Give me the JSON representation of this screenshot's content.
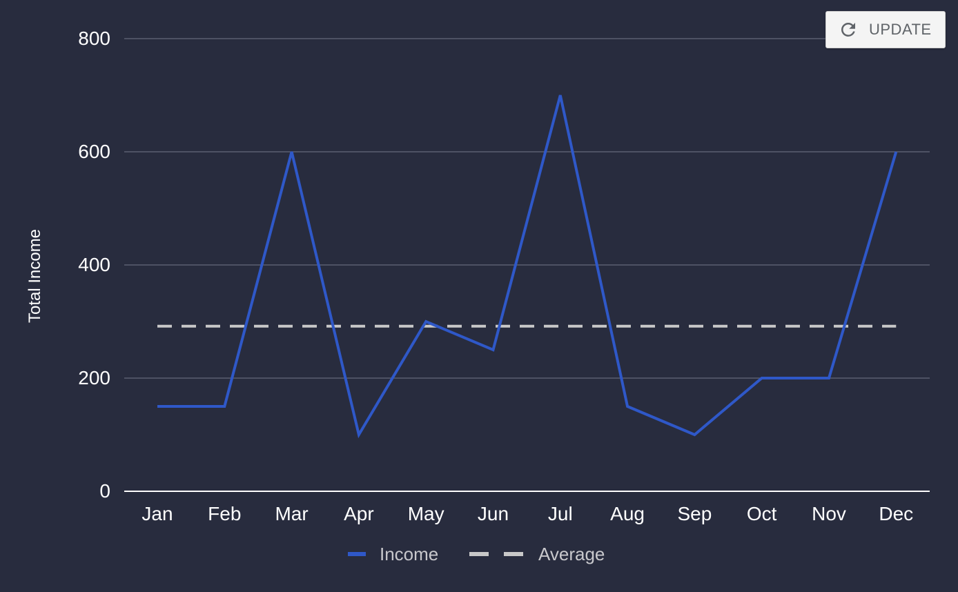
{
  "toolbar": {
    "update_label": "UPDATE"
  },
  "colors": {
    "background": "#282c3e",
    "income": "#2f58c8",
    "average": "#c8c8c8",
    "grid": "#5a5e70",
    "text": "#ffffff",
    "legend_text": "#c8c8cc"
  },
  "chart_data": {
    "type": "line",
    "title": "",
    "xlabel": "",
    "ylabel": "Total Income",
    "categories": [
      "Jan",
      "Feb",
      "Mar",
      "Apr",
      "May",
      "Jun",
      "Jul",
      "Aug",
      "Sep",
      "Oct",
      "Nov",
      "Dec"
    ],
    "series": [
      {
        "name": "Income",
        "values": [
          150,
          150,
          600,
          100,
          300,
          250,
          700,
          150,
          100,
          200,
          200,
          600
        ],
        "style": "solid",
        "color": "#2f58c8"
      },
      {
        "name": "Average",
        "values": [
          291.7,
          291.7,
          291.7,
          291.7,
          291.7,
          291.7,
          291.7,
          291.7,
          291.7,
          291.7,
          291.7,
          291.7
        ],
        "style": "dashed",
        "color": "#c8c8c8"
      }
    ],
    "ylim": [
      0,
      800
    ],
    "yticks": [
      0,
      200,
      400,
      600,
      800
    ],
    "grid": true,
    "legend": "bottom"
  }
}
